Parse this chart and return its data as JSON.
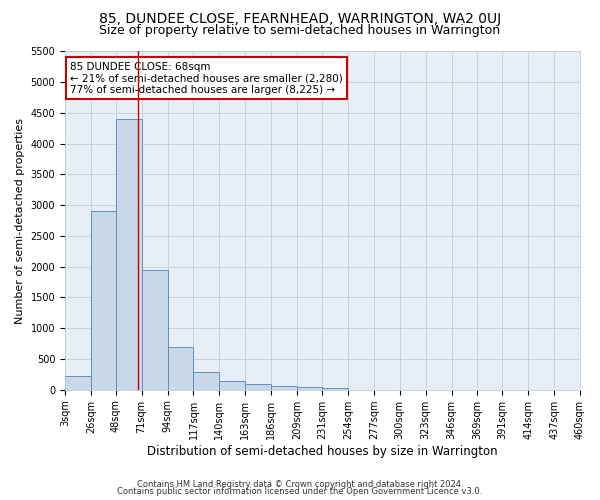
{
  "title": "85, DUNDEE CLOSE, FEARNHEAD, WARRINGTON, WA2 0UJ",
  "subtitle": "Size of property relative to semi-detached houses in Warrington",
  "xlabel": "Distribution of semi-detached houses by size in Warrington",
  "ylabel": "Number of semi-detached properties",
  "bin_edges": [
    3,
    26,
    48,
    71,
    94,
    117,
    140,
    163,
    186,
    209,
    231,
    254,
    277,
    300,
    323,
    346,
    369,
    391,
    414,
    437,
    460
  ],
  "bar_heights": [
    230,
    2900,
    4400,
    1950,
    700,
    290,
    140,
    90,
    60,
    50,
    20,
    0,
    0,
    0,
    0,
    0,
    0,
    0,
    0,
    0
  ],
  "bar_color": "#c9d9ea",
  "bar_edge_color": "#6090bb",
  "property_size": 68,
  "red_line_color": "#cc0000",
  "ylim": [
    0,
    5500
  ],
  "annotation_text": "85 DUNDEE CLOSE: 68sqm\n← 21% of semi-detached houses are smaller (2,280)\n77% of semi-detached houses are larger (8,225) →",
  "annotation_box_color": "#ffffff",
  "annotation_box_edge_color": "#cc0000",
  "footer1": "Contains HM Land Registry data © Crown copyright and database right 2024.",
  "footer2": "Contains public sector information licensed under the Open Government Licence v3.0.",
  "bg_color": "#ffffff",
  "plot_bg_color": "#e8eef5",
  "grid_color": "#c0cdd8",
  "title_fontsize": 10,
  "subtitle_fontsize": 9,
  "tick_label_fontsize": 7,
  "ylabel_fontsize": 8,
  "xlabel_fontsize": 8.5,
  "annotation_fontsize": 7.5,
  "footer_fontsize": 6
}
